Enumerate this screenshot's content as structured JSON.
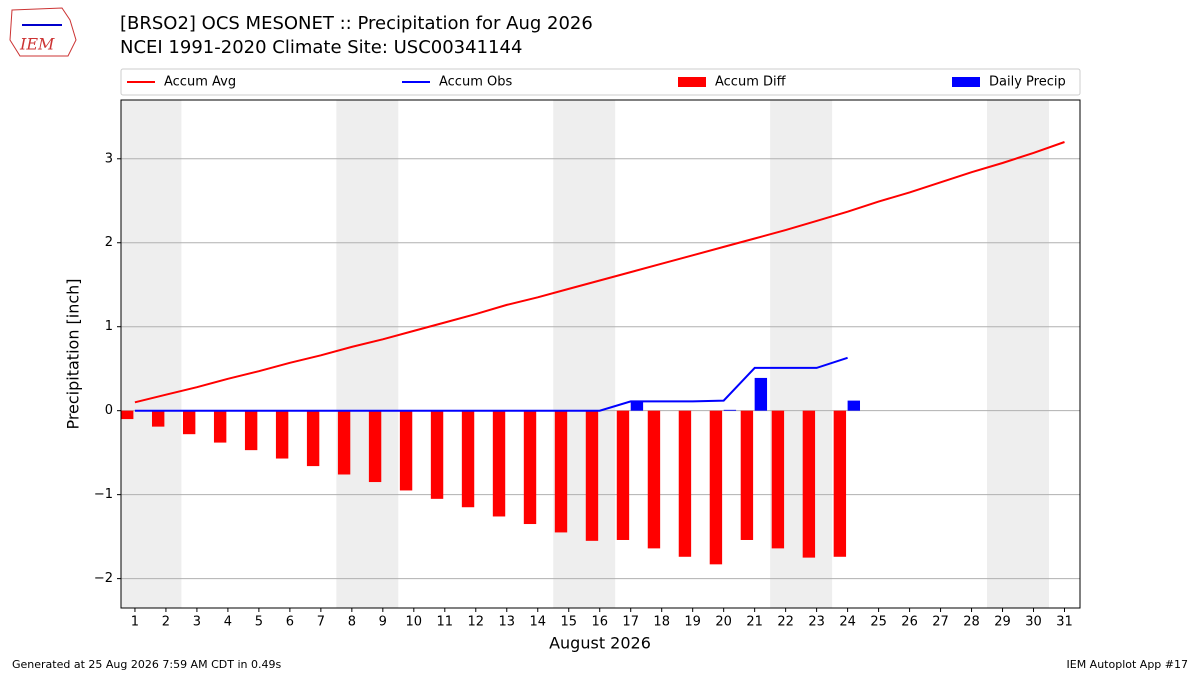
{
  "chart_data": {
    "type": "combo",
    "title": "[BRSO2] OCS MESONET :: Precipitation for Aug 2026",
    "subtitle": "NCEI 1991-2020 Climate Site: USC00341144",
    "logo_text": "IEM",
    "xlabel": "August 2026",
    "ylabel": "Precipitation [inch]",
    "x": [
      1,
      2,
      3,
      4,
      5,
      6,
      7,
      8,
      9,
      10,
      11,
      12,
      13,
      14,
      15,
      16,
      17,
      18,
      19,
      20,
      21,
      22,
      23,
      24,
      25,
      26,
      27,
      28,
      29,
      30,
      31
    ],
    "xlim": [
      0.55,
      31.5
    ],
    "ylim": [
      -2.35,
      3.7
    ],
    "yticks": [
      {
        "value": -2,
        "label": "−2"
      },
      {
        "value": -1,
        "label": "−1"
      },
      0,
      1,
      2,
      3
    ],
    "grid": true,
    "shaded_spans": [
      [
        0.5,
        2.5
      ],
      [
        7.5,
        9.5
      ],
      [
        14.5,
        16.5
      ],
      [
        21.5,
        23.5
      ],
      [
        28.5,
        30.5
      ]
    ],
    "series": [
      {
        "name": "Accum Avg",
        "kind": "line",
        "color": "#ff0000",
        "values": [
          0.1,
          0.19,
          0.28,
          0.38,
          0.47,
          0.57,
          0.66,
          0.76,
          0.85,
          0.95,
          1.05,
          1.15,
          1.26,
          1.35,
          1.45,
          1.55,
          1.65,
          1.75,
          1.85,
          1.95,
          2.05,
          2.15,
          2.26,
          2.37,
          2.49,
          2.6,
          2.72,
          2.84,
          2.95,
          3.07,
          3.2
        ]
      },
      {
        "name": "Accum Obs",
        "kind": "line",
        "color": "#0000ff",
        "values": [
          0,
          0,
          0,
          0,
          0,
          0,
          0,
          0,
          0,
          0,
          0,
          0,
          0,
          0,
          0,
          0,
          0.11,
          0.11,
          0.11,
          0.12,
          0.51,
          0.51,
          0.51,
          0.63,
          null,
          null,
          null,
          null,
          null,
          null,
          null
        ]
      },
      {
        "name": "Accum Diff",
        "kind": "bar",
        "color": "#ff0000",
        "values": [
          -0.1,
          -0.19,
          -0.28,
          -0.38,
          -0.47,
          -0.57,
          -0.66,
          -0.76,
          -0.85,
          -0.95,
          -1.05,
          -1.15,
          -1.26,
          -1.35,
          -1.45,
          -1.55,
          -1.54,
          -1.64,
          -1.74,
          -1.83,
          -1.54,
          -1.64,
          -1.75,
          -1.74,
          null,
          null,
          null,
          null,
          null,
          null,
          null
        ]
      },
      {
        "name": "Daily Precip",
        "kind": "bar",
        "color": "#0000ff",
        "values": [
          0,
          0,
          0,
          0,
          0,
          0,
          0,
          0,
          0,
          0,
          0,
          0,
          0,
          0,
          0,
          0,
          0.11,
          0,
          0,
          0.01,
          0.39,
          0,
          0,
          0.12,
          null,
          null,
          null,
          null,
          null,
          null,
          null
        ]
      }
    ]
  },
  "footer": {
    "left": "Generated at 25 Aug 2026 7:59 AM CDT in 0.49s",
    "right": "IEM Autoplot App #17"
  }
}
